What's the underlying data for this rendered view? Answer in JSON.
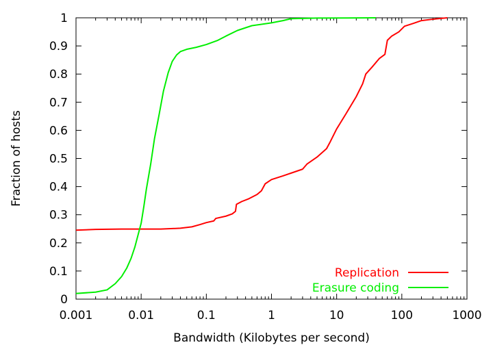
{
  "chart_data": {
    "type": "line",
    "title": "",
    "xlabel": "Bandwidth (Kilobytes per second)",
    "ylabel": "Fraction of hosts",
    "xscale": "log",
    "xlim": [
      0.001,
      1000
    ],
    "ylim": [
      0,
      1
    ],
    "x_ticks": [
      0.001,
      0.01,
      0.1,
      1,
      10,
      100,
      1000
    ],
    "x_tick_labels": [
      "0.001",
      "0.01",
      "0.1",
      "1",
      "10",
      "100",
      "1000"
    ],
    "y_ticks": [
      0,
      0.1,
      0.2,
      0.3,
      0.4,
      0.5,
      0.6,
      0.7,
      0.8,
      0.9,
      1
    ],
    "y_tick_labels": [
      "0",
      "0.1",
      "0.2",
      "0.3",
      "0.4",
      "0.5",
      "0.6",
      "0.7",
      "0.8",
      "0.9",
      "1"
    ],
    "grid": false,
    "legend_position": "bottom-right",
    "series": [
      {
        "name": "Replication",
        "color": "#ff0000",
        "points": [
          [
            0.001,
            0.245
          ],
          [
            0.002,
            0.248
          ],
          [
            0.005,
            0.249
          ],
          [
            0.01,
            0.249
          ],
          [
            0.02,
            0.249
          ],
          [
            0.04,
            0.252
          ],
          [
            0.06,
            0.257
          ],
          [
            0.08,
            0.265
          ],
          [
            0.1,
            0.272
          ],
          [
            0.13,
            0.278
          ],
          [
            0.14,
            0.287
          ],
          [
            0.2,
            0.295
          ],
          [
            0.25,
            0.303
          ],
          [
            0.28,
            0.312
          ],
          [
            0.29,
            0.337
          ],
          [
            0.35,
            0.347
          ],
          [
            0.45,
            0.357
          ],
          [
            0.6,
            0.372
          ],
          [
            0.7,
            0.385
          ],
          [
            0.8,
            0.41
          ],
          [
            1.0,
            0.425
          ],
          [
            1.5,
            0.438
          ],
          [
            2.0,
            0.448
          ],
          [
            3.0,
            0.462
          ],
          [
            3.5,
            0.48
          ],
          [
            5.0,
            0.505
          ],
          [
            7.0,
            0.535
          ],
          [
            8.0,
            0.56
          ],
          [
            10.0,
            0.605
          ],
          [
            14.0,
            0.66
          ],
          [
            20.0,
            0.72
          ],
          [
            25.0,
            0.765
          ],
          [
            28.0,
            0.8
          ],
          [
            35.0,
            0.825
          ],
          [
            45.0,
            0.855
          ],
          [
            55.0,
            0.87
          ],
          [
            60.0,
            0.92
          ],
          [
            70.0,
            0.935
          ],
          [
            90.0,
            0.95
          ],
          [
            110.0,
            0.97
          ],
          [
            150.0,
            0.98
          ],
          [
            200.0,
            0.99
          ],
          [
            300.0,
            0.995
          ],
          [
            500.0,
            1.0
          ]
        ]
      },
      {
        "name": "Erasure coding",
        "color": "#00ee00",
        "points": [
          [
            0.001,
            0.02
          ],
          [
            0.002,
            0.025
          ],
          [
            0.003,
            0.033
          ],
          [
            0.004,
            0.055
          ],
          [
            0.005,
            0.08
          ],
          [
            0.006,
            0.11
          ],
          [
            0.007,
            0.145
          ],
          [
            0.008,
            0.185
          ],
          [
            0.009,
            0.23
          ],
          [
            0.01,
            0.27
          ],
          [
            0.011,
            0.33
          ],
          [
            0.012,
            0.39
          ],
          [
            0.014,
            0.48
          ],
          [
            0.016,
            0.57
          ],
          [
            0.019,
            0.66
          ],
          [
            0.022,
            0.74
          ],
          [
            0.026,
            0.805
          ],
          [
            0.03,
            0.845
          ],
          [
            0.035,
            0.868
          ],
          [
            0.04,
            0.88
          ],
          [
            0.05,
            0.888
          ],
          [
            0.07,
            0.895
          ],
          [
            0.1,
            0.905
          ],
          [
            0.15,
            0.92
          ],
          [
            0.2,
            0.935
          ],
          [
            0.3,
            0.955
          ],
          [
            0.5,
            0.972
          ],
          [
            1.0,
            0.982
          ],
          [
            1.5,
            0.99
          ],
          [
            2.0,
            0.997
          ],
          [
            5.0,
            0.999
          ],
          [
            40.0,
            1.0
          ]
        ]
      }
    ]
  }
}
